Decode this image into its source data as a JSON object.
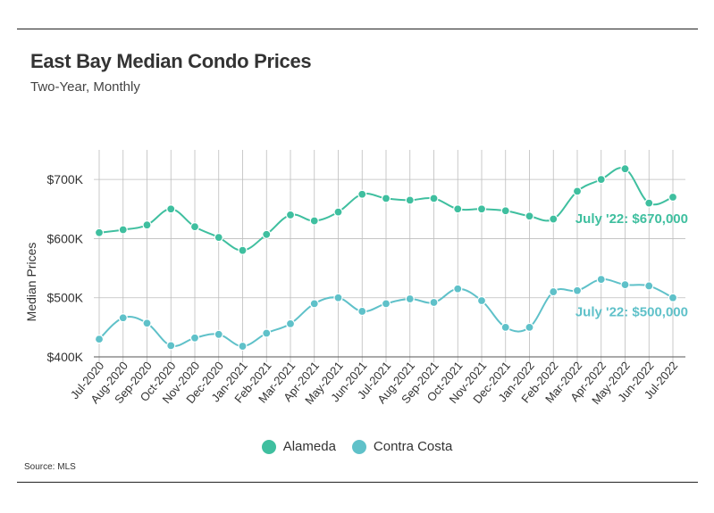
{
  "header": {
    "title": "East Bay Median Condo Prices",
    "subtitle": "Two-Year, Monthly"
  },
  "source": "Source: MLS",
  "colors": {
    "alameda": "#3fbf9f",
    "contra_costa": "#5fc1c9",
    "grid": "#bdbdbd",
    "axis": "#555555"
  },
  "legend": [
    {
      "name": "Alameda",
      "color": "#3fbf9f"
    },
    {
      "name": "Contra Costa",
      "color": "#5fc1c9"
    }
  ],
  "chart_data": {
    "type": "line",
    "title": "East Bay Median Condo Prices",
    "subtitle": "Two-Year, Monthly",
    "xlabel": "",
    "ylabel": "Median Prices",
    "ylim": [
      400000,
      750000
    ],
    "yticks": [
      400000,
      500000,
      600000,
      700000
    ],
    "ytick_labels": [
      "$400K",
      "$500K",
      "$600K",
      "$700K"
    ],
    "grid": true,
    "legend_position": "bottom-center",
    "x": [
      "Jul-2020",
      "Aug-2020",
      "Sep-2020",
      "Oct-2020",
      "Nov-2020",
      "Dec-2020",
      "Jan-2021",
      "Feb-2021",
      "Mar-2021",
      "Apr-2021",
      "May-2021",
      "Jun-2021",
      "Jul-2021",
      "Aug-2021",
      "Sep-2021",
      "Oct-2021",
      "Nov-2021",
      "Dec-2021",
      "Jan-2022",
      "Feb-2022",
      "Mar-2022",
      "Apr-2022",
      "May-2022",
      "Jun-2022",
      "Jul-2022"
    ],
    "series": [
      {
        "name": "Alameda",
        "color": "#3fbf9f",
        "values": [
          610000,
          615000,
          623000,
          650000,
          620000,
          602000,
          580000,
          607000,
          640000,
          630000,
          645000,
          675000,
          668000,
          665000,
          668000,
          650000,
          650000,
          647000,
          638000,
          633000,
          680000,
          700000,
          718000,
          660000,
          670000
        ],
        "annotation": "July '22: $670,000"
      },
      {
        "name": "Contra Costa",
        "color": "#5fc1c9",
        "values": [
          430000,
          466000,
          457000,
          419000,
          432000,
          438000,
          418000,
          440000,
          456000,
          490000,
          500000,
          477000,
          490000,
          498000,
          492000,
          515000,
          495000,
          450000,
          450000,
          510000,
          512000,
          531000,
          522000,
          520000,
          500000
        ],
        "annotation": "July '22: $500,000"
      }
    ]
  }
}
